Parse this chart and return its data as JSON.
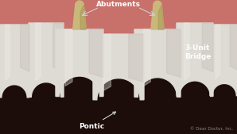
{
  "bg_color": "#1c0d0a",
  "gum_color": "#c8706a",
  "gum_color2": "#b85a58",
  "gum_dark": "#7a3030",
  "tooth_color": "#dedad4",
  "tooth_shadow": "#b8b4ac",
  "tooth_highlight": "#f0ede8",
  "abutment_color": "#c8b87a",
  "abutment_shadow": "#a89858",
  "label_color": "#ffffff",
  "arrow_color": "#d0d0d0",
  "copyright_color": "#888888",
  "label_abutments": "Abutments",
  "label_pontic": "Pontic",
  "label_bridge": "3-Unit\nBridge",
  "copyright": "© Dear Doctor, Inc.",
  "font_size_main": 6.5,
  "font_size_copy": 4.0
}
